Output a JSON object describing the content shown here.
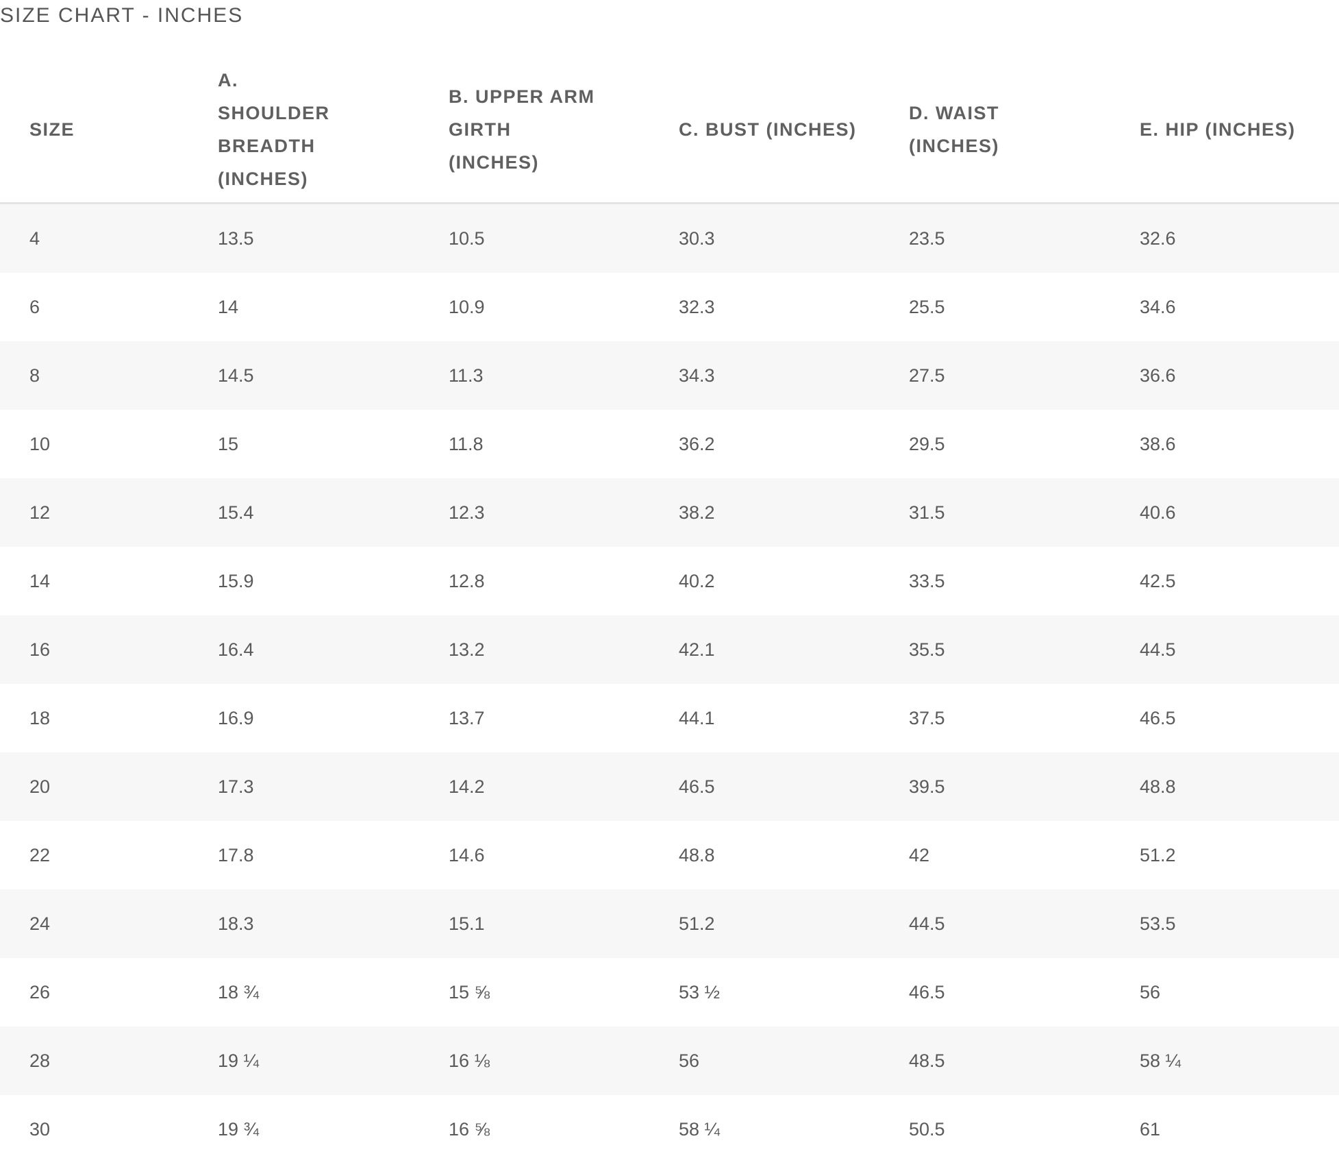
{
  "title": "SIZE CHART - INCHES",
  "headers": [
    "SIZE",
    "A. SHOULDER BREADTH (INCHES)",
    "B. UPPER ARM GIRTH (INCHES)",
    "C. BUST (INCHES)",
    "D. WAIST (INCHES)",
    "E. HIP (INCHES)"
  ],
  "rows": [
    [
      "4",
      "13.5",
      "10.5",
      "30.3",
      "23.5",
      "32.6"
    ],
    [
      "6",
      "14",
      "10.9",
      "32.3",
      "25.5",
      "34.6"
    ],
    [
      "8",
      "14.5",
      "11.3",
      "34.3",
      "27.5",
      "36.6"
    ],
    [
      "10",
      "15",
      "11.8",
      "36.2",
      "29.5",
      "38.6"
    ],
    [
      "12",
      "15.4",
      "12.3",
      "38.2",
      "31.5",
      "40.6"
    ],
    [
      "14",
      "15.9",
      "12.8",
      "40.2",
      "33.5",
      "42.5"
    ],
    [
      "16",
      "16.4",
      "13.2",
      "42.1",
      "35.5",
      "44.5"
    ],
    [
      "18",
      "16.9",
      "13.7",
      "44.1",
      "37.5",
      "46.5"
    ],
    [
      "20",
      "17.3",
      "14.2",
      "46.5",
      "39.5",
      "48.8"
    ],
    [
      "22",
      "17.8",
      "14.6",
      "48.8",
      "42",
      "51.2"
    ],
    [
      "24",
      "18.3",
      "15.1",
      "51.2",
      "44.5",
      "53.5"
    ],
    [
      "26",
      "18 ¾",
      "15 ⅝",
      "53 ½",
      "46.5",
      "56"
    ],
    [
      "28",
      "19 ¼",
      "16 ⅛",
      "56",
      "48.5",
      "58 ¼"
    ],
    [
      "30",
      "19 ¾",
      "16 ⅝",
      "58 ¼",
      "50.5",
      "61"
    ]
  ]
}
